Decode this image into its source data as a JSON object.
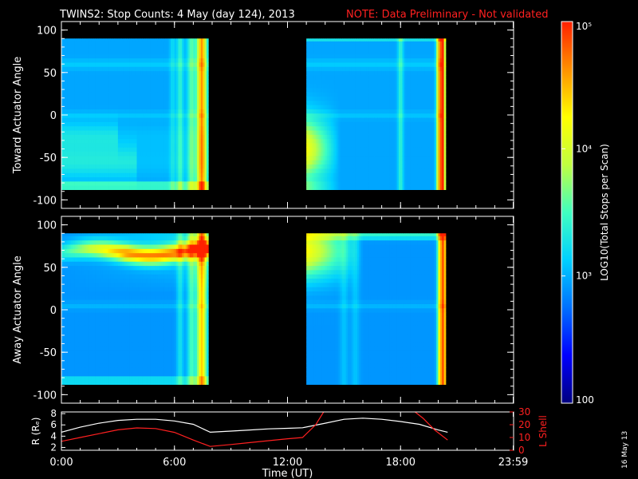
{
  "header": {
    "title": "TWINS2: Stop Counts:  4 May (day 124), 2013",
    "note": "NOTE: Data Preliminary - Not validated"
  },
  "side_date": "16 May 13",
  "colors": {
    "background": "#000000",
    "foreground": "#ffffff",
    "note": "#ff2020",
    "lshell": "#ff2020",
    "radius": "#ffffff",
    "colormap": [
      "#00007f",
      "#0000ff",
      "#0070ff",
      "#00d0ff",
      "#40ffc0",
      "#c0ff40",
      "#ffff00",
      "#ff9000",
      "#ff2000"
    ]
  },
  "chart_data": [
    {
      "type": "heatmap",
      "panel": "toward",
      "ylabel": "Toward Actuator Angle",
      "xlim": [
        0,
        24
      ],
      "ylim": [
        -110,
        110
      ],
      "yticks": [
        100,
        50,
        0,
        -50,
        -100
      ],
      "data_angle_range": [
        -88,
        90
      ],
      "data_intervals_hours": [
        [
          0,
          7.8
        ],
        [
          13,
          20.4
        ]
      ],
      "color_log_scale": true,
      "color_range": [
        100,
        100000
      ]
    },
    {
      "type": "heatmap",
      "panel": "away",
      "ylabel": "Away Actuator Angle",
      "xlim": [
        0,
        24
      ],
      "ylim": [
        -110,
        110
      ],
      "yticks": [
        100,
        50,
        0,
        -50,
        -100
      ],
      "data_angle_range": [
        -88,
        90
      ],
      "data_intervals_hours": [
        [
          0,
          7.8
        ],
        [
          13,
          20.4
        ]
      ],
      "color_log_scale": true,
      "color_range": [
        100,
        100000
      ]
    },
    {
      "type": "line",
      "panel": "ephemeris",
      "xlabel": "Time (UT)",
      "xlim": [
        0,
        24
      ],
      "xtick_labels": [
        "0:00",
        "6:00",
        "12:00",
        "18:00",
        "23:59"
      ],
      "xtick_hours": [
        0,
        6,
        12,
        18,
        23.98
      ],
      "left_axis": {
        "label": "R (Rₑ)",
        "ylim": [
          1.5,
          8.3
        ],
        "ticks": [
          2,
          4,
          6,
          8
        ]
      },
      "right_axis": {
        "label": "L Shell",
        "ylim": [
          0,
          30
        ],
        "ticks": [
          0,
          10,
          20,
          30
        ]
      },
      "series": [
        {
          "name": "R",
          "axis": "left",
          "color": "#ffffff",
          "x": [
            0,
            1,
            2,
            3,
            4,
            5,
            6,
            7,
            7.9,
            9,
            10,
            11,
            12,
            12.8,
            14,
            15,
            16,
            17,
            18,
            19,
            20,
            20.5
          ],
          "y": [
            4.7,
            5.6,
            6.3,
            6.8,
            7.0,
            7.0,
            6.7,
            6.1,
            4.7,
            4.9,
            5.1,
            5.3,
            5.4,
            5.5,
            6.3,
            7.0,
            7.2,
            7.0,
            6.6,
            6.1,
            5.1,
            4.7
          ]
        },
        {
          "name": "L Shell",
          "axis": "right",
          "color": "#ff2020",
          "segments": [
            {
              "x": [
                0,
                1,
                2,
                3,
                4,
                5,
                6,
                7,
                7.9,
                9,
                10,
                11,
                12,
                12.8,
                13.5,
                14.0
              ],
              "y": [
                7,
                10,
                13,
                16,
                17.5,
                17,
                14,
                8,
                3,
                4.5,
                6,
                7.5,
                9,
                10,
                20,
                32
              ]
            },
            {
              "x": [
                18.6,
                19.2,
                19.8,
                20.5
              ],
              "y": [
                32,
                25,
                16,
                8
              ]
            }
          ]
        }
      ]
    }
  ],
  "colorbar": {
    "title": "LOG10(Total Stops per Scan)",
    "labels": [
      {
        "value": 100000,
        "text": "10⁵"
      },
      {
        "value": 10000,
        "text": "10⁴"
      },
      {
        "value": 1000,
        "text": "10³"
      },
      {
        "value": 100,
        "text": "100"
      }
    ]
  }
}
